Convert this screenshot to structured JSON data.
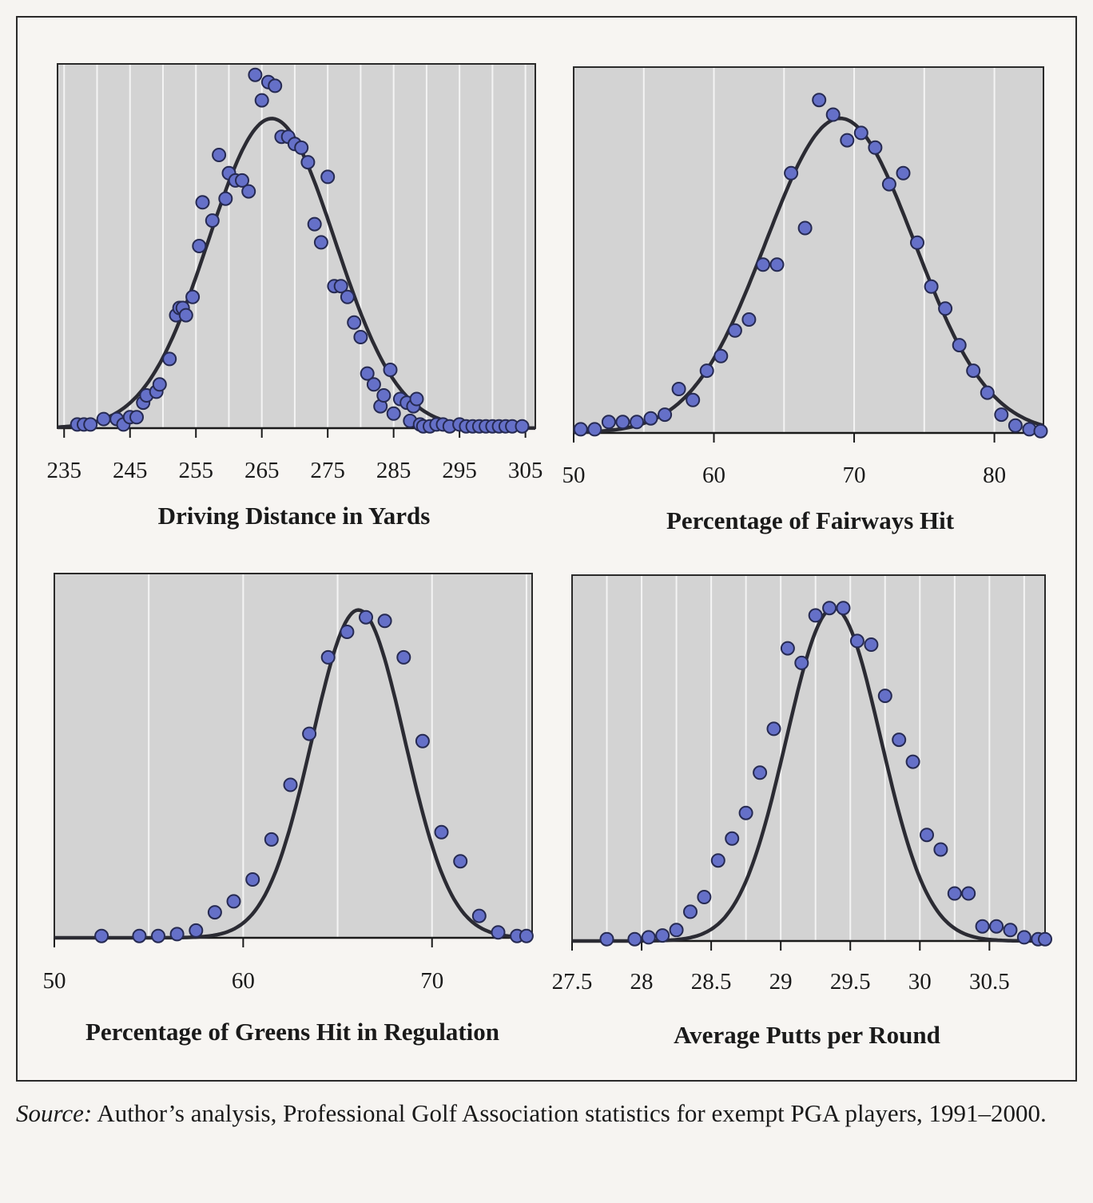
{
  "source_note": {
    "label": "Source:",
    "text": " Author’s analysis, Professional Golf Association statistics for exempt PGA players, 1991–2000."
  },
  "colors": {
    "plot_background": "#d3d3d3",
    "gridline": "#f4f4f4",
    "curve": "#2b2b33",
    "point_fill": "#6570c8",
    "point_stroke": "#262a52"
  },
  "chart_data": [
    {
      "type": "scatter",
      "title": "",
      "xlabel": "Driving Distance in Yards",
      "ylabel": "",
      "xlim": [
        234,
        306.5
      ],
      "ylim": [
        0,
        1
      ],
      "xticks": [
        235,
        245,
        255,
        265,
        275,
        285,
        295,
        305
      ],
      "tick_labels": [
        "235",
        "245",
        "255",
        "265",
        "275",
        "285",
        "295",
        "305"
      ],
      "grid": true,
      "legend": "none",
      "curve": {
        "type": "normal",
        "mean": 266.5,
        "sd": 9.6,
        "peak": 0.85
      },
      "series": [
        {
          "x": [
            237,
            238,
            239,
            241,
            243,
            244,
            245,
            246,
            247,
            247.5,
            249,
            249.5,
            251,
            252,
            252.5,
            253,
            253.5,
            254.5,
            255.5,
            256,
            257.5,
            258.5,
            259.5,
            260,
            261,
            262,
            263,
            264,
            265,
            266,
            267,
            268,
            269,
            270,
            271,
            272,
            273,
            274,
            275,
            276,
            277,
            278,
            279,
            280,
            281,
            282,
            283,
            283.5,
            284.5,
            285,
            286,
            287,
            287.5,
            288,
            288.5,
            289,
            289.5,
            290.5,
            291.5,
            292.5,
            293.5,
            295,
            296,
            297,
            298,
            299,
            300,
            301,
            302,
            303,
            304.5
          ],
          "y": [
            0.01,
            0.01,
            0.01,
            0.025,
            0.025,
            0.01,
            0.03,
            0.03,
            0.07,
            0.09,
            0.1,
            0.12,
            0.19,
            0.31,
            0.33,
            0.33,
            0.31,
            0.36,
            0.5,
            0.62,
            0.57,
            0.75,
            0.63,
            0.7,
            0.68,
            0.68,
            0.65,
            0.97,
            0.9,
            0.95,
            0.94,
            0.8,
            0.8,
            0.78,
            0.77,
            0.73,
            0.56,
            0.51,
            0.69,
            0.39,
            0.39,
            0.36,
            0.29,
            0.25,
            0.15,
            0.12,
            0.06,
            0.09,
            0.16,
            0.04,
            0.08,
            0.07,
            0.02,
            0.06,
            0.08,
            0.01,
            0.005,
            0.005,
            0.01,
            0.01,
            0.005,
            0.01,
            0.005,
            0.005,
            0.005,
            0.005,
            0.005,
            0.005,
            0.005,
            0.005,
            0.005
          ]
        }
      ]
    },
    {
      "type": "scatter",
      "title": "",
      "xlabel": "Percentage of Fairways Hit",
      "ylabel": "",
      "xlim": [
        50,
        83.5
      ],
      "ylim": [
        0,
        1
      ],
      "xticks": [
        50,
        60,
        70,
        80
      ],
      "tick_labels": [
        "50",
        "60",
        "70",
        "80"
      ],
      "grid": true,
      "legend": "none",
      "curve": {
        "type": "normal",
        "mean": 69,
        "sd": 5.3,
        "peak": 0.86
      },
      "series": [
        {
          "x": [
            50.5,
            51.5,
            52.5,
            53.5,
            54.5,
            55.5,
            56.5,
            57.5,
            58.5,
            59.5,
            60.5,
            61.5,
            62.5,
            63.5,
            64.5,
            65.5,
            66.5,
            67.5,
            68.5,
            69.5,
            70.5,
            71.5,
            72.5,
            73.5,
            74.5,
            75.5,
            76.5,
            77.5,
            78.5,
            79.5,
            80.5,
            81.5,
            82.5,
            83.3
          ],
          "y": [
            0.01,
            0.01,
            0.03,
            0.03,
            0.03,
            0.04,
            0.05,
            0.12,
            0.09,
            0.17,
            0.21,
            0.28,
            0.31,
            0.46,
            0.46,
            0.71,
            0.56,
            0.91,
            0.87,
            0.8,
            0.82,
            0.78,
            0.68,
            0.71,
            0.52,
            0.4,
            0.34,
            0.24,
            0.17,
            0.11,
            0.05,
            0.02,
            0.01,
            0.005
          ]
        }
      ]
    },
    {
      "type": "scatter",
      "title": "",
      "xlabel": "Percentage of Greens Hit in Regulation",
      "ylabel": "",
      "xlim": [
        50,
        75.3
      ],
      "ylim": [
        0,
        1
      ],
      "xticks": [
        50,
        60,
        70
      ],
      "tick_labels": [
        "50",
        "60",
        "70"
      ],
      "grid": true,
      "legend": "none",
      "curve": {
        "type": "normal",
        "mean": 66.1,
        "sd": 2.45,
        "peak": 0.9
      },
      "series": [
        {
          "x": [
            52.5,
            54.5,
            55.5,
            56.5,
            57.5,
            58.5,
            59.5,
            60.5,
            61.5,
            62.5,
            63.5,
            64.5,
            65.5,
            66.5,
            67.5,
            68.5,
            69.5,
            70.5,
            71.5,
            72.5,
            73.5,
            74.5,
            75
          ],
          "y": [
            0.005,
            0.005,
            0.005,
            0.01,
            0.02,
            0.07,
            0.1,
            0.16,
            0.27,
            0.42,
            0.56,
            0.77,
            0.84,
            0.88,
            0.87,
            0.77,
            0.54,
            0.29,
            0.21,
            0.06,
            0.015,
            0.005,
            0.005
          ]
        }
      ]
    },
    {
      "type": "scatter",
      "title": "",
      "xlabel": "Average Putts per Round",
      "ylabel": "",
      "xlim": [
        27.5,
        30.9
      ],
      "ylim": [
        0,
        1
      ],
      "xticks": [
        27.5,
        28,
        28.5,
        29,
        29.5,
        30,
        30.5
      ],
      "tick_labels": [
        "27.5",
        "28",
        "28.5",
        "29",
        "29.5",
        "30",
        "30.5"
      ],
      "grid": true,
      "legend": "none",
      "curve": {
        "type": "normal",
        "mean": 29.38,
        "sd": 0.34,
        "peak": 0.91
      },
      "series": [
        {
          "x": [
            27.75,
            27.95,
            28.05,
            28.15,
            28.25,
            28.35,
            28.45,
            28.55,
            28.65,
            28.75,
            28.85,
            28.95,
            29.05,
            29.15,
            29.25,
            29.35,
            29.45,
            29.55,
            29.65,
            29.75,
            29.85,
            29.95,
            30.05,
            30.15,
            30.25,
            30.35,
            30.45,
            30.55,
            30.65,
            30.75,
            30.85,
            30.9
          ],
          "y": [
            0.005,
            0.005,
            0.01,
            0.015,
            0.03,
            0.08,
            0.12,
            0.22,
            0.28,
            0.35,
            0.46,
            0.58,
            0.8,
            0.76,
            0.89,
            0.91,
            0.91,
            0.82,
            0.81,
            0.67,
            0.55,
            0.49,
            0.29,
            0.25,
            0.13,
            0.13,
            0.04,
            0.04,
            0.03,
            0.01,
            0.005,
            0.005
          ]
        }
      ]
    }
  ]
}
